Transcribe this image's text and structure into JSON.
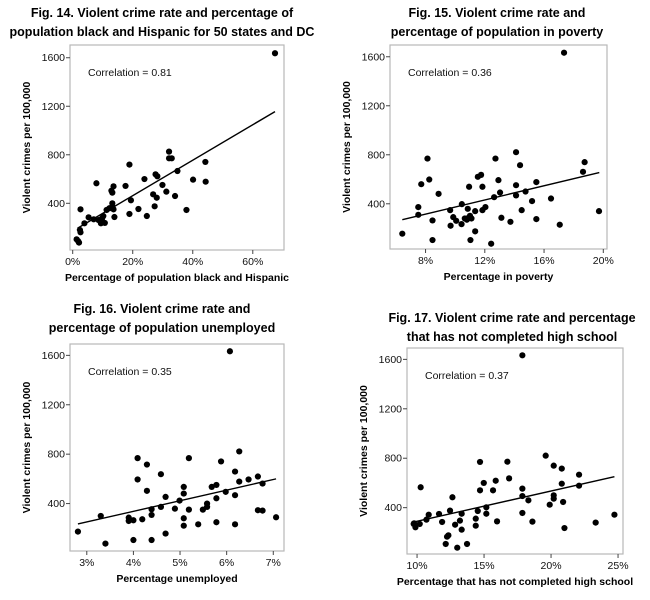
{
  "chart_data": [
    {
      "type": "scatter",
      "title": [
        "Fig. 14. Violent crime rate and percentage of",
        "population black and Hispanic for 50 states and DC"
      ],
      "xlabel": "Percentage of population black and Hispanic",
      "ylabel": "Violent crimes per 100,000",
      "annotation": "Correlation = 0.81",
      "xlim": [
        -0.9,
        70.4
      ],
      "ylim": [
        15,
        1705
      ],
      "xticks": [
        0,
        20,
        40,
        60
      ],
      "xtick_labels": [
        "0%",
        "20%",
        "40%",
        "60%"
      ],
      "yticks": [
        400,
        800,
        1200,
        1600
      ],
      "ytick_labels": [
        "400",
        "800",
        "1200",
        "1600"
      ],
      "grid": false,
      "trendline": [
        [
          1.6,
          194
        ],
        [
          67.4,
          1156
        ]
      ],
      "points": [
        [
          67.4,
          1637
        ],
        [
          32.1,
          826
        ],
        [
          32.1,
          771
        ],
        [
          33,
          771
        ],
        [
          18.9,
          719
        ],
        [
          44.2,
          741
        ],
        [
          34.9,
          666
        ],
        [
          23.9,
          600
        ],
        [
          27.6,
          639
        ],
        [
          28.2,
          623
        ],
        [
          7.9,
          565
        ],
        [
          13.6,
          540
        ],
        [
          17.6,
          543
        ],
        [
          29.9,
          551
        ],
        [
          40.1,
          595
        ],
        [
          44.3,
          578
        ],
        [
          12.9,
          504
        ],
        [
          13.2,
          488
        ],
        [
          26.8,
          474
        ],
        [
          28,
          446
        ],
        [
          31.2,
          496
        ],
        [
          34.1,
          460
        ],
        [
          19.4,
          425
        ],
        [
          13.2,
          400
        ],
        [
          13.2,
          372
        ],
        [
          13.6,
          350
        ],
        [
          12.2,
          359
        ],
        [
          11.3,
          345
        ],
        [
          27.3,
          375
        ],
        [
          21.9,
          353
        ],
        [
          37.9,
          345
        ],
        [
          2.6,
          350
        ],
        [
          18.9,
          312
        ],
        [
          24.7,
          295
        ],
        [
          13.9,
          287
        ],
        [
          10.2,
          295
        ],
        [
          9.8,
          276
        ],
        [
          9.1,
          262
        ],
        [
          9.4,
          235
        ],
        [
          10.7,
          238
        ],
        [
          7,
          268
        ],
        [
          5.3,
          284
        ],
        [
          8.6,
          262
        ],
        [
          3.9,
          235
        ],
        [
          2.4,
          180
        ],
        [
          2.6,
          161
        ],
        [
          1.3,
          103
        ],
        [
          1.8,
          89
        ],
        [
          2.1,
          76
        ]
      ]
    },
    {
      "type": "scatter",
      "title": [
        "Fig. 15. Violent crime rate and",
        "percentage of population in poverty"
      ],
      "xlabel": "Percentage in poverty",
      "ylabel": "Violent crimes per 100,000",
      "annotation": "Correlation = 0.36",
      "xlim": [
        5.6,
        20.25
      ],
      "ylim": [
        31,
        1696
      ],
      "xticks": [
        8,
        12,
        16,
        20
      ],
      "xtick_labels": [
        "8%",
        "12%",
        "16%",
        "20%"
      ],
      "yticks": [
        400,
        800,
        1200,
        1600
      ],
      "ytick_labels": [
        "400",
        "800",
        "1200",
        "1600"
      ],
      "grid": false,
      "trendline": [
        [
          6.43,
          270
        ],
        [
          19.73,
          655
        ]
      ],
      "points": [
        [
          17.35,
          1633
        ],
        [
          14.11,
          821
        ],
        [
          8.13,
          769
        ],
        [
          12.72,
          769
        ],
        [
          18.74,
          740
        ],
        [
          14.38,
          715
        ],
        [
          18.63,
          661
        ],
        [
          8.25,
          598
        ],
        [
          7.71,
          560
        ],
        [
          11.53,
          620
        ],
        [
          11.75,
          636
        ],
        [
          12.92,
          593
        ],
        [
          10.94,
          539
        ],
        [
          11.84,
          539
        ],
        [
          14.11,
          552
        ],
        [
          15.48,
          577
        ],
        [
          8.88,
          481
        ],
        [
          13.03,
          492
        ],
        [
          14.75,
          500
        ],
        [
          12.63,
          454
        ],
        [
          14.11,
          468
        ],
        [
          16.47,
          443
        ],
        [
          15.19,
          422
        ],
        [
          7.51,
          373
        ],
        [
          10.45,
          397
        ],
        [
          12.04,
          373
        ],
        [
          11.84,
          348
        ],
        [
          9.66,
          348
        ],
        [
          10.85,
          359
        ],
        [
          11.35,
          340
        ],
        [
          14.49,
          348
        ],
        [
          19.71,
          340
        ],
        [
          7.51,
          310
        ],
        [
          8.47,
          264
        ],
        [
          9.87,
          291
        ],
        [
          10.07,
          261
        ],
        [
          10.43,
          234
        ],
        [
          9.69,
          221
        ],
        [
          10.65,
          280
        ],
        [
          10.9,
          286
        ],
        [
          11.1,
          280
        ],
        [
          11.0,
          302
        ],
        [
          10.79,
          270
        ],
        [
          13.12,
          286
        ],
        [
          13.73,
          253
        ],
        [
          15.48,
          275
        ],
        [
          17.06,
          229
        ],
        [
          11.35,
          175
        ],
        [
          6.43,
          156
        ],
        [
          8.47,
          104
        ],
        [
          11.03,
          104
        ],
        [
          12.43,
          74
        ]
      ]
    },
    {
      "type": "scatter",
      "title": [
        "Fig. 16. Violent crime rate and",
        "percentage of population unemployed"
      ],
      "xlabel": "Percentage unemployed",
      "ylabel": "Violent crimes per 100,000",
      "annotation": "Correlation = 0.35",
      "xlim": [
        2.64,
        7.23
      ],
      "ylim": [
        16,
        1692
      ],
      "xticks": [
        3,
        4,
        5,
        6,
        7
      ],
      "xtick_labels": [
        "3%",
        "4%",
        "5%",
        "6%",
        "7%"
      ],
      "yticks": [
        400,
        800,
        1200,
        1600
      ],
      "ytick_labels": [
        "400",
        "800",
        "1200",
        "1600"
      ],
      "grid": false,
      "trendline": [
        [
          2.81,
          235
        ],
        [
          7.06,
          600
        ]
      ],
      "points": [
        [
          6.07,
          1633
        ],
        [
          2.81,
          173
        ],
        [
          3.3,
          300
        ],
        [
          3.4,
          76
        ],
        [
          3.9,
          286
        ],
        [
          3.9,
          259
        ],
        [
          4.0,
          265
        ],
        [
          4.0,
          105
        ],
        [
          4.09,
          768
        ],
        [
          4.09,
          595
        ],
        [
          4.19,
          273
        ],
        [
          4.29,
          716
        ],
        [
          4.29,
          503
        ],
        [
          4.39,
          354
        ],
        [
          4.39,
          308
        ],
        [
          4.39,
          105
        ],
        [
          4.59,
          638
        ],
        [
          4.59,
          373
        ],
        [
          4.69,
          454
        ],
        [
          4.69,
          157
        ],
        [
          4.89,
          359
        ],
        [
          4.99,
          424
        ],
        [
          5.08,
          535
        ],
        [
          5.08,
          481
        ],
        [
          5.08,
          281
        ],
        [
          5.08,
          221
        ],
        [
          5.19,
          768
        ],
        [
          5.19,
          351
        ],
        [
          5.39,
          232
        ],
        [
          5.49,
          351
        ],
        [
          5.58,
          400
        ],
        [
          5.58,
          373
        ],
        [
          5.68,
          535
        ],
        [
          5.78,
          551
        ],
        [
          5.78,
          443
        ],
        [
          5.78,
          249
        ],
        [
          5.88,
          741
        ],
        [
          5.98,
          495
        ],
        [
          6.18,
          659
        ],
        [
          6.18,
          468
        ],
        [
          6.18,
          232
        ],
        [
          6.27,
          822
        ],
        [
          6.27,
          578
        ],
        [
          6.47,
          595
        ],
        [
          6.67,
          619
        ],
        [
          6.67,
          346
        ],
        [
          6.77,
          343
        ],
        [
          6.77,
          562
        ],
        [
          7.06,
          289
        ]
      ]
    },
    {
      "type": "scatter",
      "title": [
        "Fig. 17. Violent crime rate and percentage",
        "that has not completed high school"
      ],
      "xlabel": "Percentage that has not completed high school",
      "ylabel": "Violent crimes per 100,000",
      "annotation": "Correlation = 0.37",
      "xlim": [
        9.25,
        25.37
      ],
      "ylim": [
        25,
        1692
      ],
      "xticks": [
        10,
        15,
        20,
        25
      ],
      "xtick_labels": [
        "10%",
        "15%",
        "20%",
        "25%"
      ],
      "yticks": [
        400,
        800,
        1200,
        1600
      ],
      "ytick_labels": [
        "400",
        "800",
        "1200",
        "1600"
      ],
      "grid": false,
      "trendline": [
        [
          9.78,
          284
        ],
        [
          24.73,
          651
        ]
      ],
      "points": [
        [
          17.86,
          1633
        ],
        [
          9.78,
          273
        ],
        [
          9.88,
          241
        ],
        [
          10.2,
          268
        ],
        [
          9.75,
          268
        ],
        [
          10.27,
          565
        ],
        [
          10.7,
          303
        ],
        [
          10.87,
          343
        ],
        [
          11.64,
          349
        ],
        [
          11.87,
          284
        ],
        [
          12.46,
          376
        ],
        [
          12.64,
          484
        ],
        [
          12.24,
          165
        ],
        [
          12.34,
          176
        ],
        [
          12.14,
          106
        ],
        [
          12.84,
          262
        ],
        [
          13.0,
          76
        ],
        [
          13.2,
          295
        ],
        [
          13.33,
          351
        ],
        [
          13.33,
          222
        ],
        [
          13.73,
          106
        ],
        [
          14.38,
          254
        ],
        [
          14.38,
          311
        ],
        [
          14.53,
          373
        ],
        [
          14.7,
          770
        ],
        [
          14.7,
          540
        ],
        [
          14.98,
          600
        ],
        [
          15.17,
          403
        ],
        [
          15.17,
          351
        ],
        [
          15.67,
          540
        ],
        [
          15.87,
          618
        ],
        [
          15.97,
          289
        ],
        [
          16.74,
          772
        ],
        [
          16.87,
          637
        ],
        [
          17.86,
          357
        ],
        [
          17.86,
          494
        ],
        [
          17.86,
          554
        ],
        [
          18.31,
          459
        ],
        [
          18.61,
          287
        ],
        [
          19.6,
          821
        ],
        [
          19.9,
          424
        ],
        [
          20.2,
          740
        ],
        [
          20.2,
          500
        ],
        [
          20.2,
          473
        ],
        [
          20.8,
          716
        ],
        [
          20.8,
          594
        ],
        [
          20.9,
          446
        ],
        [
          21.0,
          235
        ],
        [
          22.09,
          667
        ],
        [
          22.09,
          578
        ],
        [
          23.33,
          279
        ],
        [
          24.73,
          343
        ]
      ]
    }
  ]
}
